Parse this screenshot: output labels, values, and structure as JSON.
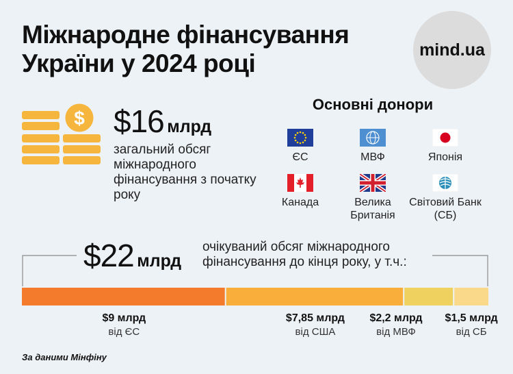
{
  "header": {
    "title_line1": "Міжнародне фінансування",
    "title_line2": "України у 2024 році",
    "logo_text": "mind.ua"
  },
  "summary": {
    "amount": "$16",
    "unit": "млрд",
    "description": "загальний обсяг міжнародного фінансування з початку року"
  },
  "donors": {
    "title": "Основні донори",
    "items": [
      {
        "label": "ЄС",
        "icon": "eu-flag-icon"
      },
      {
        "label": "МВФ",
        "icon": "imf-logo-icon"
      },
      {
        "label": "Японія",
        "icon": "japan-flag-icon"
      },
      {
        "label": "Канада",
        "icon": "canada-flag-icon"
      },
      {
        "label": "Велика Британія",
        "icon": "uk-flag-icon"
      },
      {
        "label": "Світовий Банк (СБ)",
        "icon": "world-bank-logo-icon"
      }
    ]
  },
  "expected": {
    "amount": "$22",
    "unit": "млрд",
    "description": "очікуваний обсяг міжнародного фінансування до кінця року, у т.ч.:"
  },
  "chart_data": {
    "type": "bar",
    "orientation": "horizontal-stacked",
    "total": 22,
    "segments": [
      {
        "value": 9,
        "label": "$9 млрд",
        "source": "від ЄС",
        "color": "#f47a2c"
      },
      {
        "value": 7.85,
        "label": "$7,85 млрд",
        "source": "від США",
        "color": "#f9ae3c"
      },
      {
        "value": 2.2,
        "label": "$2,2 млрд",
        "source": "від МВФ",
        "color": "#efd15f"
      },
      {
        "value": 1.5,
        "label": "$1,5 млрд",
        "source": "від СБ",
        "color": "#fbd98a"
      }
    ]
  },
  "footer": {
    "source": "За даними Мінфіну"
  }
}
